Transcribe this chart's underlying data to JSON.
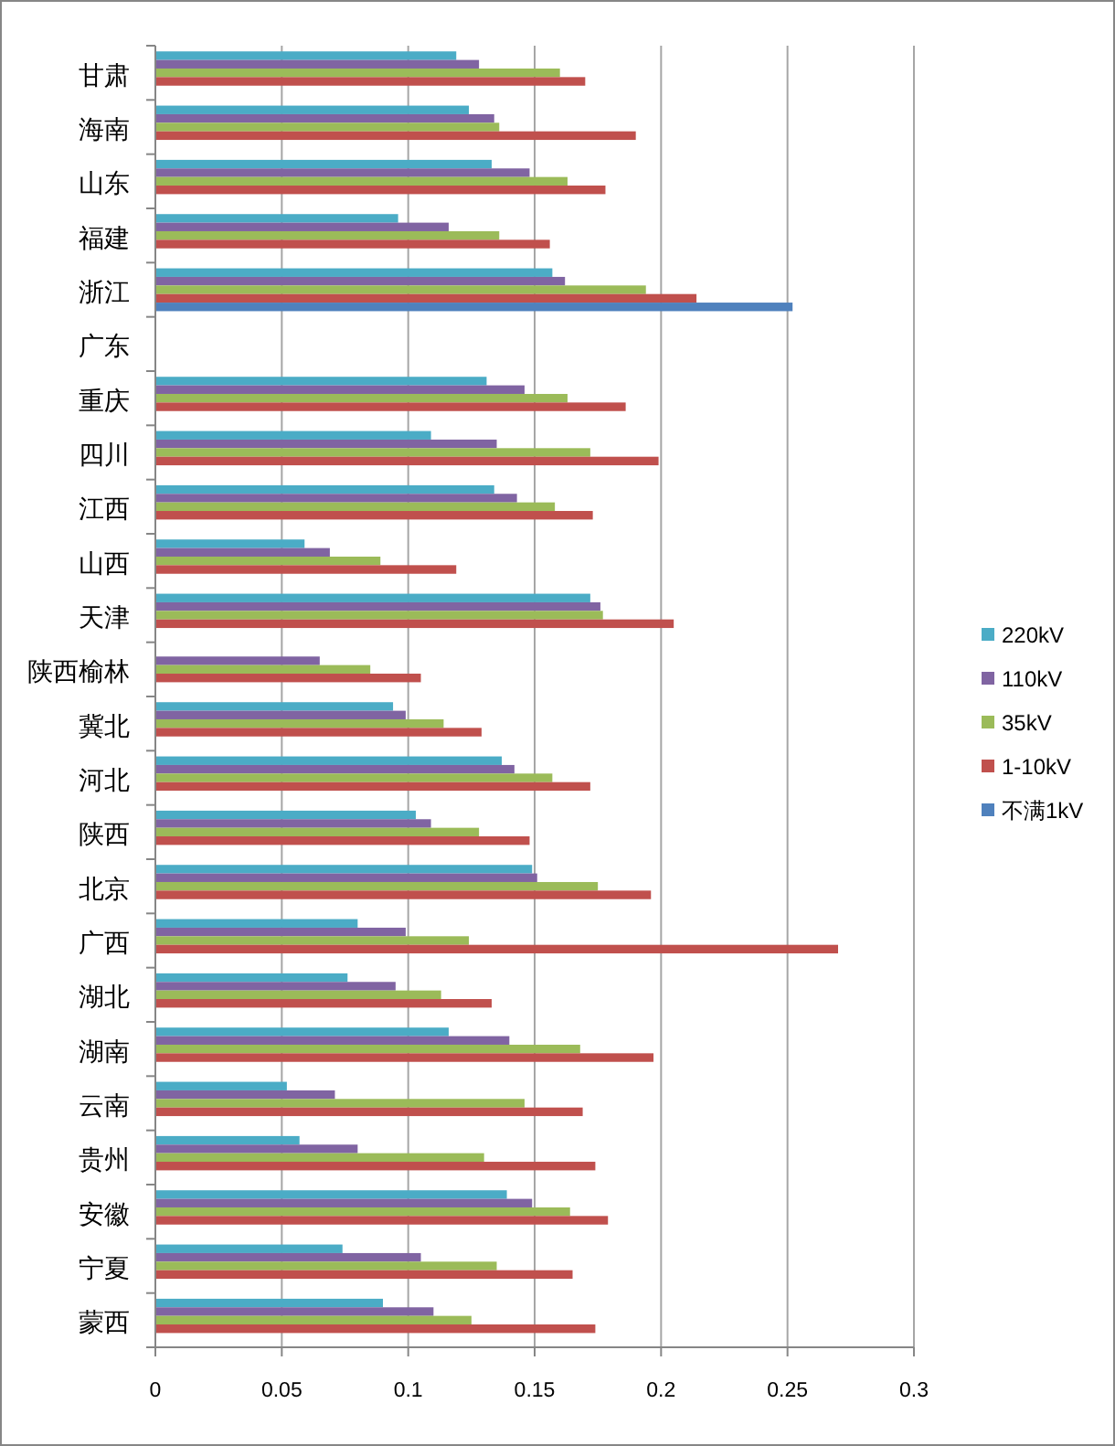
{
  "chart_data": {
    "type": "bar",
    "orientation": "horizontal",
    "categories": [
      "甘肃",
      "海南",
      "山东",
      "福建",
      "浙江",
      "广东",
      "重庆",
      "四川",
      "江西",
      "山西",
      "天津",
      "陕西榆林",
      "冀北",
      "河北",
      "陕西",
      "北京",
      "广西",
      "湖北",
      "湖南",
      "云南",
      "贵州",
      "安徽",
      "宁夏",
      "蒙西"
    ],
    "series": [
      {
        "name": "220kV",
        "color": "#4bacc6",
        "values": [
          0.119,
          0.124,
          0.133,
          0.096,
          0.157,
          null,
          0.131,
          0.109,
          0.134,
          0.059,
          0.172,
          null,
          0.094,
          0.137,
          0.103,
          0.149,
          0.08,
          0.076,
          0.116,
          0.052,
          0.057,
          0.139,
          0.074,
          0.09
        ]
      },
      {
        "name": "110kV",
        "color": "#8064a2",
        "values": [
          0.128,
          0.134,
          0.148,
          0.116,
          0.162,
          null,
          0.146,
          0.135,
          0.143,
          0.069,
          0.176,
          0.065,
          0.099,
          0.142,
          0.109,
          0.151,
          0.099,
          0.095,
          0.14,
          0.071,
          0.08,
          0.149,
          0.105,
          0.11
        ]
      },
      {
        "name": "35kV",
        "color": "#9bbb59",
        "values": [
          0.16,
          0.136,
          0.163,
          0.136,
          0.194,
          null,
          0.163,
          0.172,
          0.158,
          0.089,
          0.177,
          0.085,
          0.114,
          0.157,
          0.128,
          0.175,
          0.124,
          0.113,
          0.168,
          0.146,
          0.13,
          0.164,
          0.135,
          0.125
        ]
      },
      {
        "name": "1-10kV",
        "color": "#c0504d",
        "values": [
          0.17,
          0.19,
          0.178,
          0.156,
          0.214,
          null,
          0.186,
          0.199,
          0.173,
          0.119,
          0.205,
          0.105,
          0.129,
          0.172,
          0.148,
          0.196,
          0.27,
          0.133,
          0.197,
          0.169,
          0.174,
          0.179,
          0.165,
          0.174
        ]
      },
      {
        "name": "不满1kV",
        "color": "#4f81bd",
        "values": [
          null,
          null,
          null,
          null,
          0.252,
          null,
          null,
          null,
          null,
          null,
          null,
          null,
          null,
          null,
          null,
          null,
          null,
          null,
          null,
          null,
          null,
          null,
          null,
          null
        ]
      }
    ],
    "xlim": [
      0,
      0.3
    ],
    "xticks": [
      0,
      0.05,
      0.1,
      0.15,
      0.2,
      0.25,
      0.3
    ],
    "grid": "x",
    "legend": "right"
  }
}
